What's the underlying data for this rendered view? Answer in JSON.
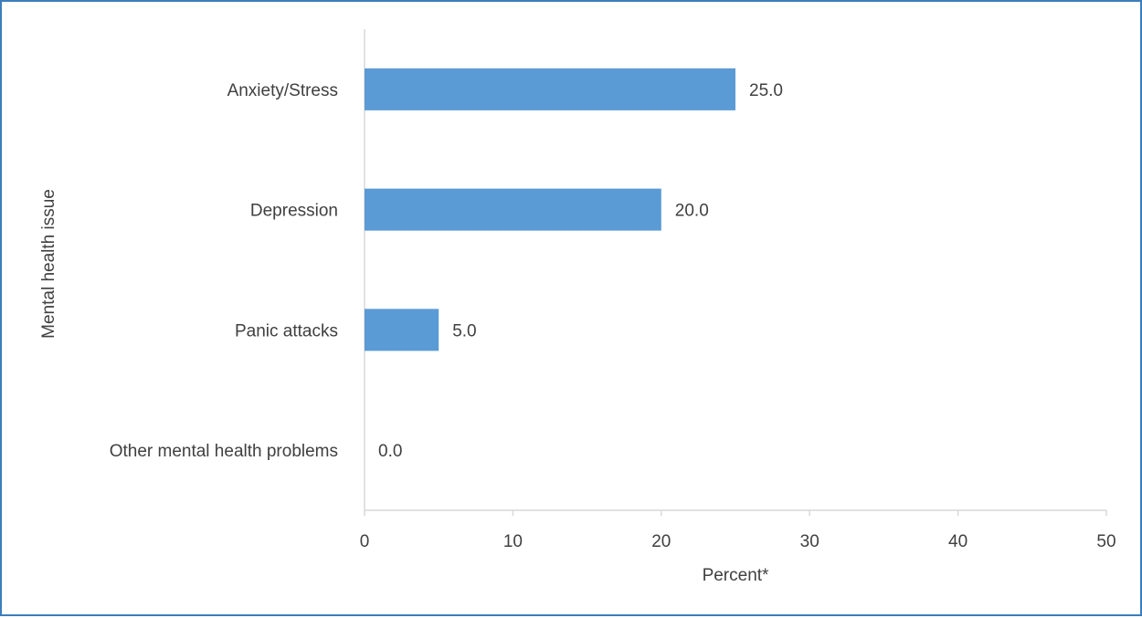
{
  "chart_data": {
    "type": "bar",
    "orientation": "horizontal",
    "categories": [
      "Anxiety/Stress",
      "Depression",
      "Panic attacks",
      "Other mental health problems"
    ],
    "values": [
      25.0,
      20.0,
      5.0,
      0.0
    ],
    "value_labels": [
      "25.0",
      "20.0",
      "5.0",
      "0.0"
    ],
    "xlabel": "Percent*",
    "ylabel": "Mental health issue",
    "xlim": [
      0,
      50
    ],
    "xticks": [
      0,
      10,
      20,
      30,
      40,
      50
    ],
    "grid": false,
    "legend": "none",
    "colors": {
      "bar": "#5b9bd5",
      "axis": "#d9d9d9",
      "frame": "#3c7ebd",
      "text": "#404040"
    }
  }
}
